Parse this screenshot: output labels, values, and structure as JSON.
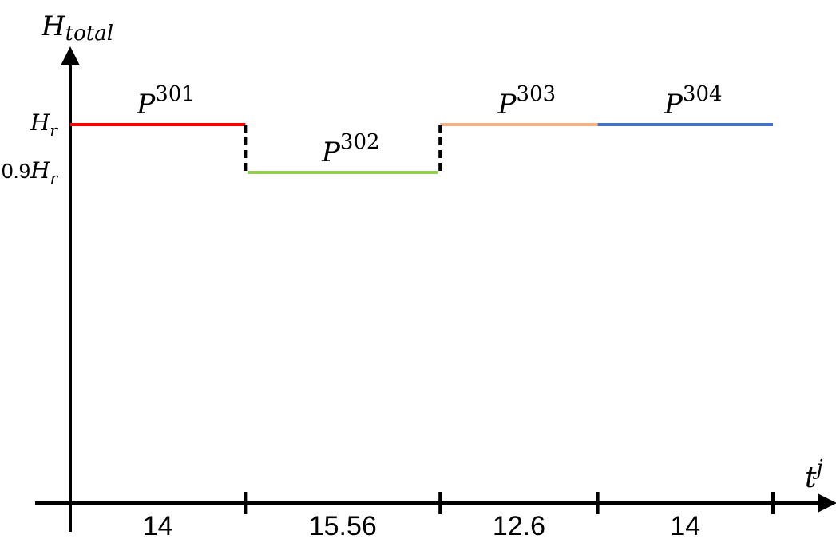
{
  "chart_data": {
    "type": "line",
    "y_axis": {
      "label_main": "H",
      "label_sub": "total",
      "levels": [
        {
          "main": "H",
          "sub": "r",
          "prefix": "",
          "value": 1.0
        },
        {
          "main": "H",
          "sub": "r",
          "prefix": "0.9",
          "value": 0.9
        }
      ]
    },
    "x_axis": {
      "label_main": "t",
      "label_sup": "j",
      "durations": [
        "14",
        "15.56",
        "12.6",
        "14"
      ]
    },
    "segments": [
      {
        "base": "P",
        "sup": "301",
        "duration": 14,
        "level": 1.0,
        "color": "#ff0000"
      },
      {
        "base": "P",
        "sup": "302",
        "duration": 15.56,
        "level": 0.9,
        "color": "#92d050"
      },
      {
        "base": "P",
        "sup": "303",
        "duration": 12.6,
        "level": 1.0,
        "color": "#f4b183"
      },
      {
        "base": "P",
        "sup": "304",
        "duration": 14,
        "level": 1.0,
        "color": "#4472c4"
      }
    ],
    "transitions": {
      "style": "dashed",
      "color": "#000000"
    }
  }
}
